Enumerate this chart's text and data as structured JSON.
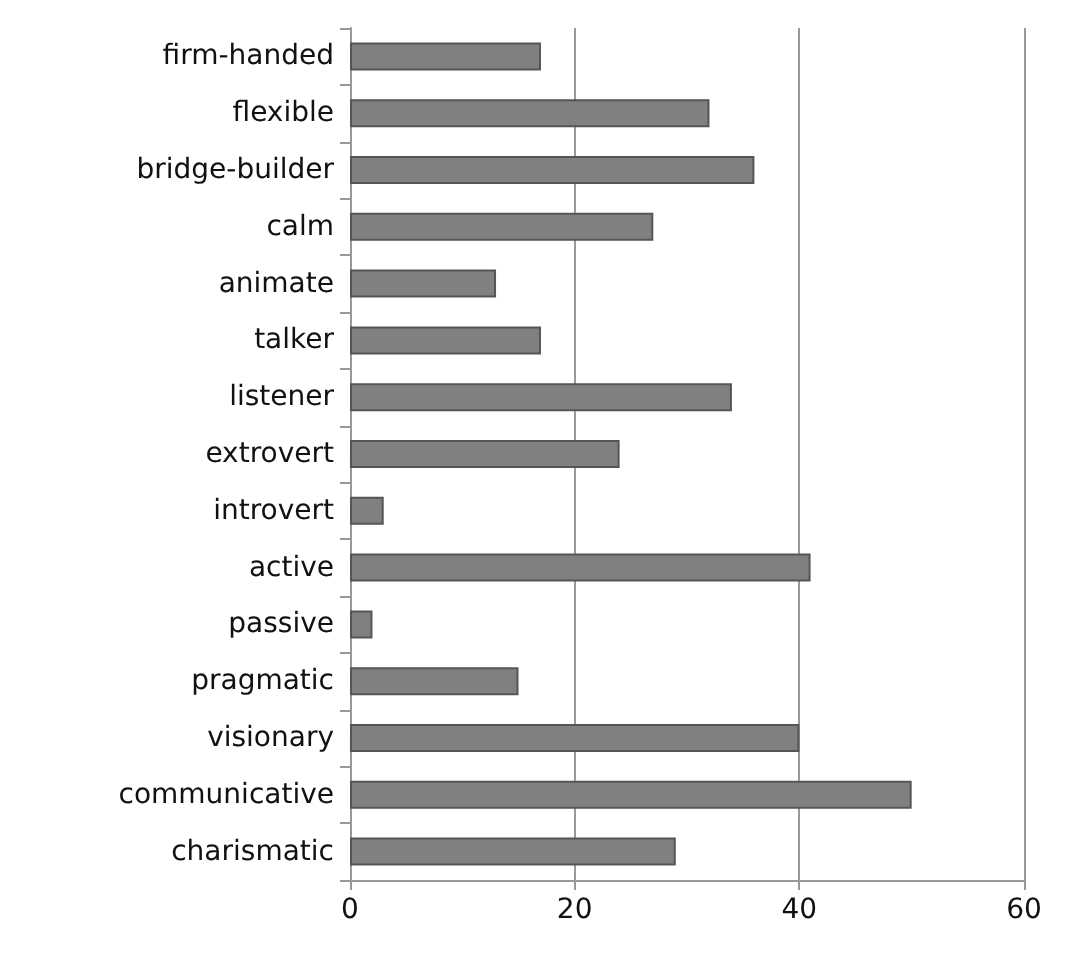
{
  "chart_data": {
    "type": "bar",
    "orientation": "horizontal",
    "categories": [
      "firm-handed",
      "flexible",
      "bridge-builder",
      "calm",
      "animate",
      "talker",
      "listener",
      "extrovert",
      "introvert",
      "active",
      "passive",
      "pragmatic",
      "visionary",
      "communicative",
      "charismatic"
    ],
    "values": [
      17,
      32,
      36,
      27,
      13,
      17,
      34,
      24,
      3,
      41,
      2,
      15,
      40,
      50,
      29
    ],
    "color": "#808080",
    "xlim": [
      0,
      60
    ],
    "xticks": [
      0,
      20,
      40,
      60
    ],
    "grid": "x"
  }
}
